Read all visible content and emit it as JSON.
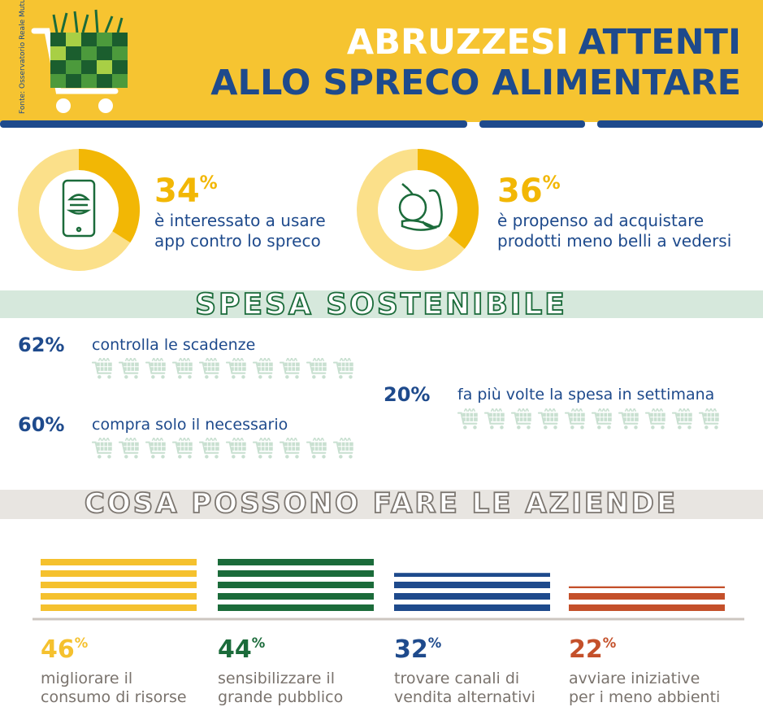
{
  "header": {
    "title_part1": "ABRUZZESI",
    "title_part2": "ATTENTI",
    "title_line2": "ALLO SPRECO ALIMENTARE",
    "source": "Fonte: Osservatorio Reale Mutua"
  },
  "highlights": [
    {
      "percent": 34,
      "unit": "%",
      "text_lines": [
        "è interessato a usare",
        "app contro lo spreco"
      ]
    },
    {
      "percent": 36,
      "unit": "%",
      "text_lines": [
        "è propenso ad acquistare",
        "prodotti meno belli a vedersi"
      ]
    }
  ],
  "shopping": {
    "title": "SPESA SOSTENIBILE",
    "items": [
      {
        "percent": 62,
        "unit": "%",
        "text": "controlla le scadenze"
      },
      {
        "percent": 60,
        "unit": "%",
        "text": "compra solo il necessario"
      },
      {
        "percent": 20,
        "unit": "%",
        "text": "fa più volte la spesa in settimana"
      }
    ]
  },
  "companies": {
    "title": "COSA POSSONO FARE LE AZIENDE",
    "items": [
      {
        "percent": 46,
        "unit": "%",
        "text_lines": [
          "migliorare il",
          "consumo di risorse"
        ],
        "color": "#f5c12e"
      },
      {
        "percent": 44,
        "unit": "%",
        "text_lines": [
          "sensibilizzare il",
          "grande pubblico"
        ],
        "color": "#1b6b3a"
      },
      {
        "percent": 32,
        "unit": "%",
        "text_lines": [
          "trovare canali di",
          "vendita alternativi"
        ],
        "color": "#1e4a8c"
      },
      {
        "percent": 22,
        "unit": "%",
        "text_lines": [
          "avviare iniziative",
          "per i meno abbienti"
        ],
        "color": "#c4502a"
      }
    ]
  }
}
